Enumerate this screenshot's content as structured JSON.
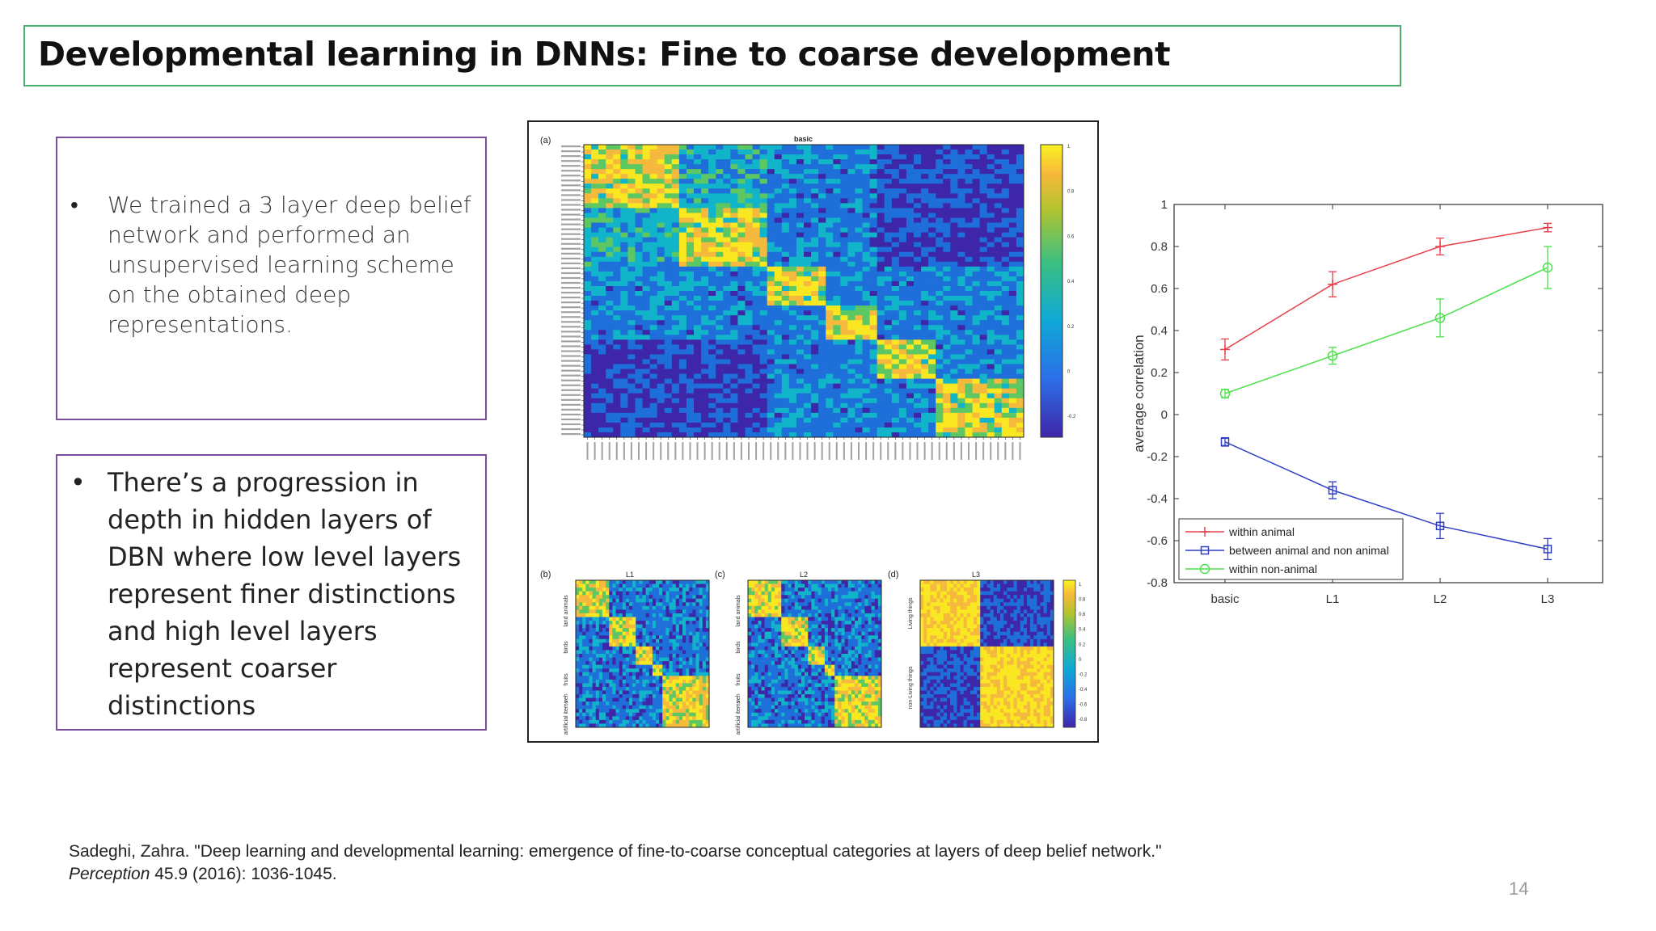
{
  "title": "Developmental learning in DNNs: Fine to coarse development",
  "bullets": [
    {
      "symbol": "•",
      "text": "We trained a 3 layer deep belief network and performed an unsupervised learning scheme on the obtained deep representations."
    },
    {
      "symbol": "•",
      "text": "There’s a progression in depth in hidden layers of DBN where low level layers represent finer distinctions and high level layers represent coarser distinctions"
    }
  ],
  "figure": {
    "panel_a_letter": "(a)",
    "panel_a_title": "basic",
    "panel_b_letter": "(b)",
    "panel_c_letter": "(c)",
    "panel_d_letter": "(d)",
    "l1": "L1",
    "l2": "L2",
    "l3": "L3",
    "group_labels_bc": [
      "land animals",
      "birds",
      "fruits",
      "veh",
      "artificial items"
    ],
    "group_labels_d": [
      "Living things",
      "non-Living things"
    ],
    "main_colorbar_ticks": [
      "1",
      "0.8",
      "0.6",
      "0.4",
      "0.2",
      "0",
      "-0.2"
    ],
    "small_colorbar_ticks": [
      "1",
      "0.8",
      "0.6",
      "0.4",
      "0.2",
      "0",
      "-0.2",
      "-0.4",
      "-0.6",
      "-0.8"
    ],
    "colors": {
      "dark": "#3e26a8",
      "blue": "#1e6fd9",
      "cyan": "#11b4c9",
      "green": "#5dc863",
      "yellow": "#f9e721",
      "orange": "#f5b93d"
    }
  },
  "chart_data": {
    "type": "line",
    "categories": [
      "basic",
      "L1",
      "L2",
      "L3"
    ],
    "ylabel": "average correlation",
    "xlabel": "",
    "ylim": [
      -0.8,
      1
    ],
    "yticks": [
      "1",
      "0.8",
      "0.6",
      "0.4",
      "0.2",
      "0",
      "-0.2",
      "-0.4",
      "-0.6",
      "-0.8"
    ],
    "legend_position": "bottom-left",
    "series": [
      {
        "name": "within animal",
        "color": "#e8404a",
        "marker": "plus",
        "values": [
          0.31,
          0.62,
          0.8,
          0.89
        ],
        "errors": [
          0.05,
          0.06,
          0.04,
          0.02
        ]
      },
      {
        "name": "between animal and non animal",
        "color": "#2f3fc4",
        "marker": "square",
        "values": [
          -0.13,
          -0.36,
          -0.53,
          -0.64
        ],
        "errors": [
          0.02,
          0.04,
          0.06,
          0.05
        ]
      },
      {
        "name": "within non-animal",
        "color": "#4ce04c",
        "marker": "circle",
        "values": [
          0.1,
          0.28,
          0.46,
          0.7
        ],
        "errors": [
          0.02,
          0.04,
          0.09,
          0.1
        ]
      }
    ]
  },
  "reference": {
    "before_italic": "Sadeghi, Zahra. \"Deep learning and developmental learning: emergence of fine-to-coarse conceptual categories at layers of deep belief network.\" ",
    "italic": "Perception",
    "after_italic": " 45.9 (2016): 1036-1045."
  },
  "page_number": "14"
}
